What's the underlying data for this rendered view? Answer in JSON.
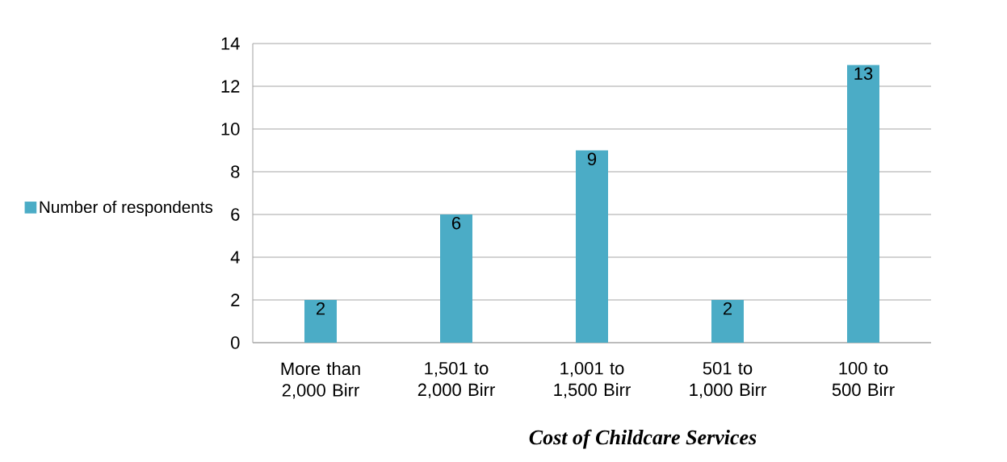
{
  "chart_data": {
    "type": "bar",
    "xlabel": "Cost of Childcare Services",
    "categories": [
      "More than 2,000 Birr",
      "1,501 to 2,000 Birr",
      "1,001 to 1,500 Birr",
      "501 to 1,000 Birr",
      "100 to 500 Birr"
    ],
    "series": [
      {
        "name": "Number of respondents",
        "color": "#4bacc6",
        "values": [
          2,
          6,
          9,
          2,
          13
        ]
      }
    ],
    "ylim": [
      0,
      14
    ],
    "yticks": [
      0,
      2,
      4,
      6,
      8,
      10,
      12,
      14
    ],
    "grid": "y",
    "legend": "left",
    "data_labels": true
  }
}
